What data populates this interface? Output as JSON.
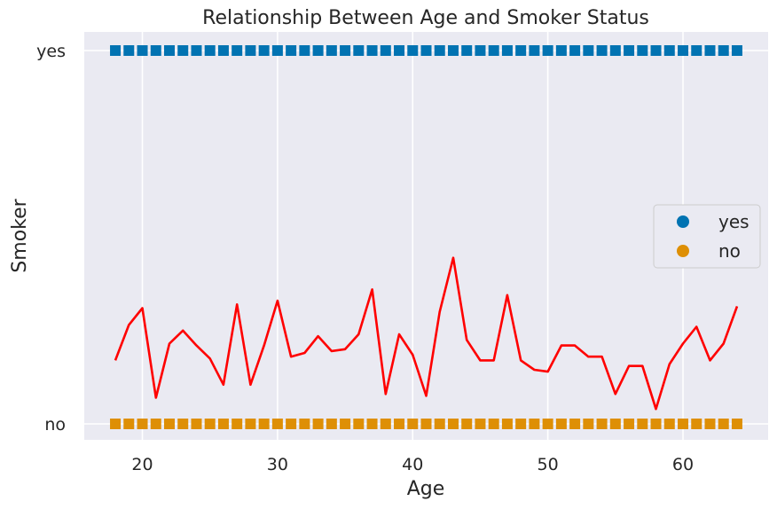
{
  "chart_data": {
    "type": "scatter",
    "title": "Relationship Between Age and Smoker Status",
    "xlabel": "Age",
    "ylabel": "Smoker",
    "xlim": [
      15.7,
      66.3
    ],
    "x_ticks": [
      20,
      30,
      40,
      50,
      60
    ],
    "y_categories": [
      "no",
      "yes"
    ],
    "grid": true,
    "legend_placement": "center-right",
    "legend": [
      {
        "label": "yes",
        "color": "#0173b2"
      },
      {
        "label": "no",
        "color": "#de8f05"
      }
    ],
    "series": [
      {
        "name": "yes",
        "marker": "square",
        "color": "#0173b2",
        "y": "yes",
        "x": [
          18,
          19,
          20,
          21,
          22,
          23,
          24,
          25,
          26,
          27,
          28,
          29,
          30,
          31,
          32,
          33,
          34,
          35,
          36,
          37,
          38,
          39,
          40,
          41,
          42,
          43,
          44,
          45,
          46,
          47,
          48,
          49,
          50,
          51,
          52,
          53,
          54,
          55,
          56,
          57,
          58,
          59,
          60,
          61,
          62,
          63,
          64
        ]
      },
      {
        "name": "no",
        "marker": "square",
        "color": "#de8f05",
        "y": "no",
        "x": [
          18,
          19,
          20,
          21,
          22,
          23,
          24,
          25,
          26,
          27,
          28,
          29,
          30,
          31,
          32,
          33,
          34,
          35,
          36,
          37,
          38,
          39,
          40,
          41,
          42,
          43,
          44,
          45,
          46,
          47,
          48,
          49,
          50,
          51,
          52,
          53,
          54,
          55,
          56,
          57,
          58,
          59,
          60,
          61,
          62,
          63,
          64
        ]
      },
      {
        "type": "line",
        "color": "#ff0000",
        "x": [
          18,
          19,
          20,
          21,
          22,
          23,
          24,
          25,
          26,
          27,
          28,
          29,
          30,
          31,
          32,
          33,
          34,
          35,
          36,
          37,
          38,
          39,
          40,
          41,
          42,
          43,
          44,
          45,
          46,
          47,
          48,
          49,
          50,
          51,
          52,
          53,
          54,
          55,
          56,
          57,
          58,
          59,
          60,
          61,
          62,
          63,
          64
        ],
        "y": [
          0.17,
          0.265,
          0.31,
          0.07,
          0.215,
          0.25,
          0.21,
          0.175,
          0.105,
          0.32,
          0.105,
          0.21,
          0.33,
          0.18,
          0.19,
          0.235,
          0.195,
          0.2,
          0.24,
          0.36,
          0.08,
          0.24,
          0.185,
          0.075,
          0.3,
          0.445,
          0.225,
          0.17,
          0.17,
          0.345,
          0.17,
          0.145,
          0.14,
          0.21,
          0.21,
          0.18,
          0.18,
          0.08,
          0.155,
          0.155,
          0.04,
          0.16,
          0.215,
          0.26,
          0.17,
          0.215,
          0.315
        ]
      }
    ]
  }
}
